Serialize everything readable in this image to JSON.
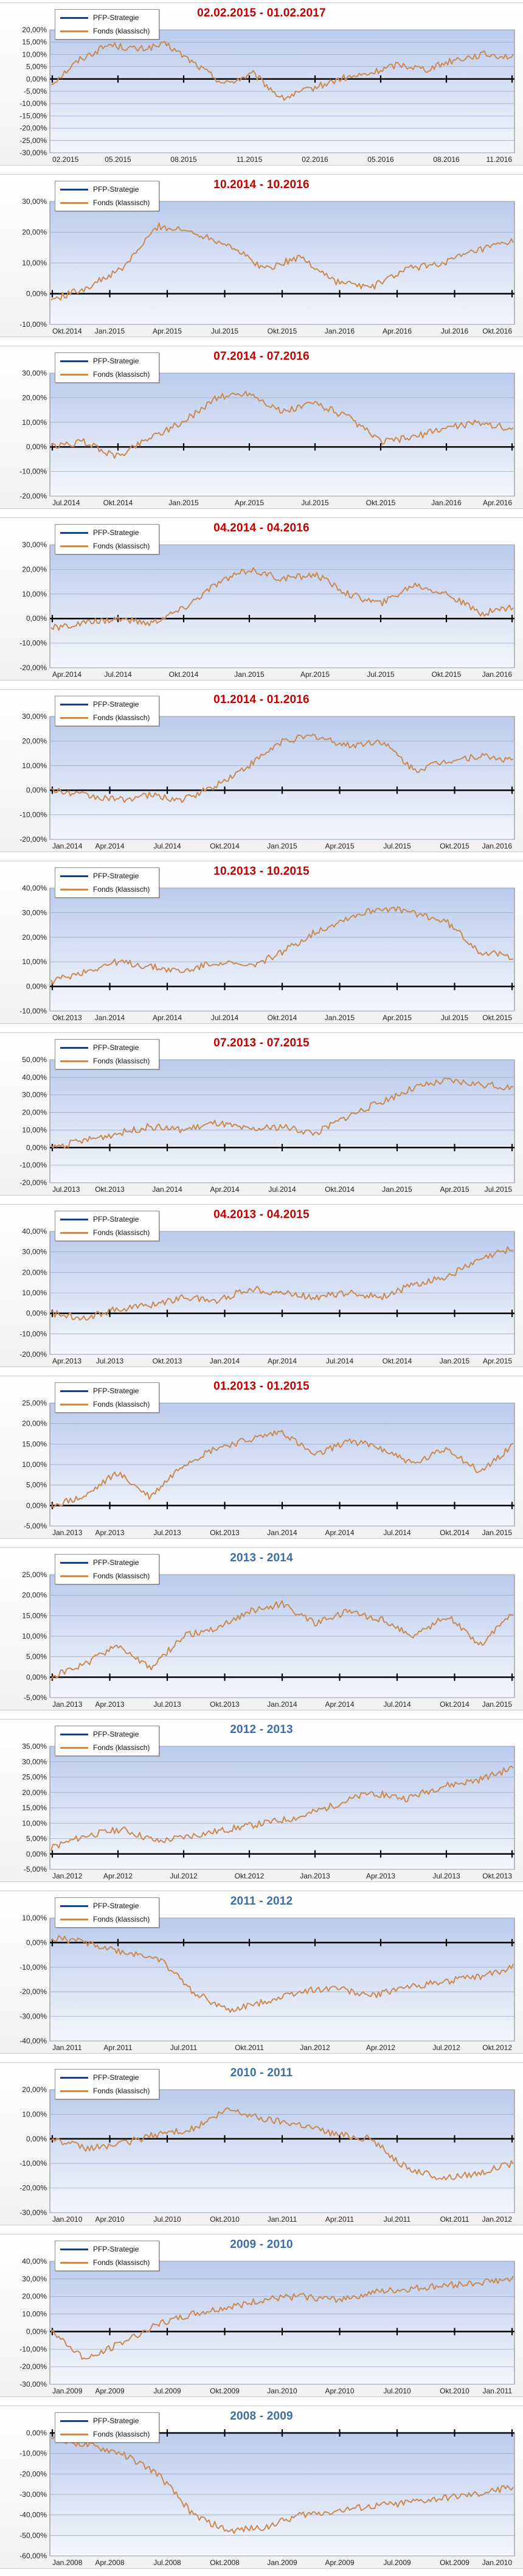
{
  "legend": {
    "strategy": "PFP-Strategie",
    "fund": "Fonds (klassisch)"
  },
  "colors": {
    "fund_line": "#c98a52",
    "strategy_line": "#1b3f7a",
    "plot_bg_top": "#bccced",
    "plot_bg_bottom": "#f4f6fb",
    "red_title": "#c00000",
    "blue_title": "#3b6ea5"
  },
  "chart_data": [
    {
      "type": "line",
      "title": "02.02.2015 - 01.02.2017",
      "title_color": "red",
      "y_ticks": [
        "20,00%",
        "15,00%",
        "10,00%",
        "5,00%",
        "0,00%",
        "-5,00%",
        "-10,00%",
        "-15,00%",
        "-20,00%",
        "-25,00%",
        "-30,00%"
      ],
      "ylim": [
        -30,
        20
      ],
      "x_ticks": [
        "02.2015",
        "05.2015",
        "08.2015",
        "11.2015",
        "02.2016",
        "05.2016",
        "08.2016",
        "11.2016"
      ],
      "series": [
        {
          "name": "PFP-Strategie",
          "values": []
        },
        {
          "name": "Fonds (klassisch)",
          "values": [
            -2,
            8,
            14,
            12,
            14,
            6,
            -2,
            2,
            -8,
            -4,
            0,
            2,
            6,
            4,
            8,
            10,
            9
          ]
        }
      ]
    },
    {
      "type": "line",
      "title": "10.2014 - 10.2016",
      "title_color": "red",
      "y_ticks": [
        "30,00%",
        "20,00%",
        "10,00%",
        "0,00%",
        "-10,00%"
      ],
      "ylim": [
        -10,
        30
      ],
      "x_ticks": [
        "Okt.2014",
        "Jan.2015",
        "Apr.2015",
        "Jul.2015",
        "Okt.2015",
        "Jan.2016",
        "Apr.2016",
        "Jul.2016",
        "Okt.2016"
      ],
      "series": [
        {
          "name": "PFP-Strategie",
          "values": []
        },
        {
          "name": "Fonds (klassisch)",
          "values": [
            -2,
            2,
            8,
            22,
            20,
            16,
            8,
            12,
            4,
            2,
            8,
            10,
            14,
            17
          ]
        }
      ]
    },
    {
      "type": "line",
      "title": "07.2014 - 07.2016",
      "title_color": "red",
      "y_ticks": [
        "30,00%",
        "20,00%",
        "10,00%",
        "0,00%",
        "-10,00%",
        "-20,00%"
      ],
      "ylim": [
        -20,
        30
      ],
      "x_ticks": [
        "Jul.2014",
        "Okt.2014",
        "Jan.2015",
        "Apr.2015",
        "Jul.2015",
        "Okt.2015",
        "Jan.2016",
        "Apr.2016"
      ],
      "series": [
        {
          "name": "PFP-Strategie",
          "values": []
        },
        {
          "name": "Fonds (klassisch)",
          "values": [
            0,
            2,
            -4,
            4,
            10,
            20,
            22,
            14,
            18,
            12,
            2,
            4,
            8,
            10,
            7
          ]
        }
      ]
    },
    {
      "type": "line",
      "title": "04.2014 - 04.2016",
      "title_color": "red",
      "y_ticks": [
        "30,00%",
        "20,00%",
        "10,00%",
        "0,00%",
        "-10,00%",
        "-20,00%"
      ],
      "ylim": [
        -20,
        30
      ],
      "x_ticks": [
        "Apr.2014",
        "Jul.2014",
        "Okt.2014",
        "Jan.2015",
        "Apr.2015",
        "Jul.2015",
        "Okt.2015",
        "Jan.2016"
      ],
      "series": [
        {
          "name": "PFP-Strategie",
          "values": []
        },
        {
          "name": "Fonds (klassisch)",
          "values": [
            -4,
            -2,
            0,
            -2,
            4,
            14,
            20,
            16,
            18,
            10,
            6,
            14,
            10,
            2,
            5
          ]
        }
      ]
    },
    {
      "type": "line",
      "title": "01.2014 - 01.2016",
      "title_color": "red",
      "y_ticks": [
        "30,00%",
        "20,00%",
        "10,00%",
        "0,00%",
        "-10,00%",
        "-20,00%"
      ],
      "ylim": [
        -20,
        30
      ],
      "x_ticks": [
        "Jan.2014",
        "Apr.2014",
        "Jul.2014",
        "Okt.2014",
        "Jan.2015",
        "Apr.2015",
        "Jul.2015",
        "Okt.2015",
        "Jan.2016"
      ],
      "series": [
        {
          "name": "PFP-Strategie",
          "values": []
        },
        {
          "name": "Fonds (klassisch)",
          "values": [
            0,
            -2,
            -4,
            -2,
            -4,
            2,
            10,
            20,
            22,
            18,
            20,
            8,
            12,
            14,
            12
          ]
        }
      ]
    },
    {
      "type": "line",
      "title": "10.2013 - 10.2015",
      "title_color": "red",
      "y_ticks": [
        "40,00%",
        "30,00%",
        "20,00%",
        "10,00%",
        "0,00%",
        "-10,00%"
      ],
      "ylim": [
        -10,
        40
      ],
      "x_ticks": [
        "Okt.2013",
        "Jan.2014",
        "Apr.2014",
        "Jul.2014",
        "Okt.2014",
        "Jan.2015",
        "Apr.2015",
        "Jul.2015",
        "Okt.2015"
      ],
      "series": [
        {
          "name": "PFP-Strategie",
          "values": []
        },
        {
          "name": "Fonds (klassisch)",
          "values": [
            2,
            6,
            10,
            8,
            6,
            10,
            8,
            14,
            22,
            28,
            32,
            30,
            26,
            14,
            12
          ]
        }
      ]
    },
    {
      "type": "line",
      "title": "07.2013 - 07.2015",
      "title_color": "red",
      "y_ticks": [
        "50,00%",
        "40,00%",
        "30,00%",
        "20,00%",
        "10,00%",
        "0,00%",
        "-10,00%",
        "-20,00%"
      ],
      "ylim": [
        -20,
        50
      ],
      "x_ticks": [
        "Jul.2013",
        "Okt.2013",
        "Jan.2014",
        "Apr.2014",
        "Jul.2014",
        "Okt.2014",
        "Jan.2015",
        "Apr.2015",
        "Jul.2015"
      ],
      "series": [
        {
          "name": "PFP-Strategie",
          "values": []
        },
        {
          "name": "Fonds (klassisch)",
          "values": [
            0,
            4,
            8,
            12,
            10,
            14,
            10,
            12,
            8,
            18,
            26,
            34,
            38,
            36,
            34
          ]
        }
      ]
    },
    {
      "type": "line",
      "title": "04.2013 - 04.2015",
      "title_color": "red",
      "y_ticks": [
        "40,00%",
        "30,00%",
        "20,00%",
        "10,00%",
        "0,00%",
        "-10,00%",
        "-20,00%"
      ],
      "ylim": [
        -20,
        40
      ],
      "x_ticks": [
        "Apr.2013",
        "Jul.2013",
        "Okt.2013",
        "Jan.2014",
        "Apr.2014",
        "Jul.2014",
        "Okt.2014",
        "Jan.2015",
        "Apr.2015"
      ],
      "series": [
        {
          "name": "PFP-Strategie",
          "values": []
        },
        {
          "name": "Fonds (klassisch)",
          "values": [
            0,
            -2,
            2,
            4,
            8,
            6,
            12,
            10,
            8,
            10,
            8,
            14,
            18,
            26,
            32
          ]
        }
      ]
    },
    {
      "type": "line",
      "title": "01.2013 - 01.2015",
      "title_color": "red",
      "y_ticks": [
        "25,00%",
        "20,00%",
        "15,00%",
        "10,00%",
        "5,00%",
        "0,00%",
        "-5,00%"
      ],
      "ylim": [
        -5,
        25
      ],
      "x_ticks": [
        "Jan.2013",
        "Apr.2013",
        "Jul.2013",
        "Okt.2013",
        "Jan.2014",
        "Apr.2014",
        "Jul.2014",
        "Okt.2014",
        "Jan.2015"
      ],
      "series": [
        {
          "name": "PFP-Strategie",
          "values": []
        },
        {
          "name": "Fonds (klassisch)",
          "values": [
            0,
            2,
            8,
            2,
            10,
            14,
            16,
            18,
            12,
            16,
            14,
            10,
            14,
            8,
            15
          ]
        }
      ]
    },
    {
      "type": "line",
      "title": "2013 - 2014",
      "title_color": "blue",
      "y_ticks": [
        "25,00%",
        "20,00%",
        "15,00%",
        "10,00%",
        "5,00%",
        "0,00%",
        "-5,00%"
      ],
      "ylim": [
        -5,
        25
      ],
      "x_ticks": [
        "Jan.2013",
        "Apr.2013",
        "Jul.2013",
        "Okt.2013",
        "Jan.2014",
        "Apr.2014",
        "Jul.2014",
        "Okt.2014",
        "Jan.2015"
      ],
      "series": [
        {
          "name": "PFP-Strategie",
          "values": []
        },
        {
          "name": "Fonds (klassisch)",
          "values": [
            0,
            3,
            8,
            2,
            10,
            12,
            16,
            18,
            13,
            16,
            14,
            10,
            15,
            8,
            16
          ]
        }
      ]
    },
    {
      "type": "line",
      "title": "2012 - 2013",
      "title_color": "blue",
      "y_ticks": [
        "35,00%",
        "30,00%",
        "25,00%",
        "20,00%",
        "15,00%",
        "10,00%",
        "5,00%",
        "0,00%",
        "-5,00%"
      ],
      "ylim": [
        -5,
        35
      ],
      "x_ticks": [
        "Jan.2012",
        "Apr.2012",
        "Jul.2012",
        "Okt.2012",
        "Jan.2013",
        "Apr.2013",
        "Jul.2013",
        "Okt.2013"
      ],
      "series": [
        {
          "name": "PFP-Strategie",
          "values": []
        },
        {
          "name": "Fonds (klassisch)",
          "values": [
            2,
            6,
            8,
            4,
            6,
            8,
            10,
            12,
            16,
            20,
            18,
            22,
            24,
            28
          ]
        }
      ]
    },
    {
      "type": "line",
      "title": "2011 - 2012",
      "title_color": "blue",
      "y_ticks": [
        "10,00%",
        "0,00%",
        "-10,00%",
        "-20,00%",
        "-30,00%",
        "-40,00%"
      ],
      "ylim": [
        -40,
        10
      ],
      "x_ticks": [
        "Jan.2011",
        "Apr.2011",
        "Jul.2011",
        "Okt.2011",
        "Jan.2012",
        "Apr.2012",
        "Jul.2012",
        "Okt.2012"
      ],
      "series": [
        {
          "name": "PFP-Strategie",
          "values": []
        },
        {
          "name": "Fonds (klassisch)",
          "values": [
            2,
            0,
            -4,
            -6,
            -20,
            -28,
            -24,
            -20,
            -18,
            -22,
            -18,
            -16,
            -14,
            -10
          ]
        }
      ]
    },
    {
      "type": "line",
      "title": "2010 - 2011",
      "title_color": "blue",
      "y_ticks": [
        "20,00%",
        "10,00%",
        "0,00%",
        "-10,00%",
        "-20,00%",
        "-30,00%"
      ],
      "ylim": [
        -30,
        20
      ],
      "x_ticks": [
        "Jan.2010",
        "Apr.2010",
        "Jul.2010",
        "Okt.2010",
        "Jan.2011",
        "Apr.2011",
        "Jul.2011",
        "Okt.2011",
        "Jan.2012"
      ],
      "series": [
        {
          "name": "PFP-Strategie",
          "values": []
        },
        {
          "name": "Fonds (klassisch)",
          "values": [
            0,
            -4,
            -2,
            2,
            4,
            12,
            8,
            6,
            2,
            0,
            -12,
            -16,
            -14,
            -10
          ]
        }
      ]
    },
    {
      "type": "line",
      "title": "2009 - 2010",
      "title_color": "blue",
      "y_ticks": [
        "40,00%",
        "30,00%",
        "20,00%",
        "10,00%",
        "0,00%",
        "-10,00%",
        "-20,00%",
        "-30,00%"
      ],
      "ylim": [
        -30,
        40
      ],
      "x_ticks": [
        "Jan.2009",
        "Apr.2009",
        "Jul.2009",
        "Okt.2009",
        "Jan.2010",
        "Apr.2010",
        "Jul.2010",
        "Okt.2010",
        "Jan.2011"
      ],
      "series": [
        {
          "name": "PFP-Strategie",
          "values": []
        },
        {
          "name": "Fonds (klassisch)",
          "values": [
            0,
            -16,
            -6,
            4,
            10,
            14,
            18,
            20,
            18,
            22,
            24,
            26,
            28,
            30
          ]
        }
      ]
    },
    {
      "type": "line",
      "title": "2008 - 2009",
      "title_color": "blue",
      "y_ticks": [
        "0,00%",
        "-10,00%",
        "-20,00%",
        "-30,00%",
        "-40,00%",
        "-50,00%",
        "-60,00%"
      ],
      "ylim": [
        -60,
        0
      ],
      "x_ticks": [
        "Jan.2008",
        "Apr.2008",
        "Jul.2008",
        "Okt.2008",
        "Jan.2009",
        "Apr.2009",
        "Jul.2009",
        "Okt.2009",
        "Jan.2010"
      ],
      "series": [
        {
          "name": "PFP-Strategie",
          "values": []
        },
        {
          "name": "Fonds (klassisch)",
          "values": [
            -2,
            -6,
            -10,
            -20,
            -40,
            -48,
            -46,
            -40,
            -38,
            -36,
            -34,
            -32,
            -30,
            -26
          ]
        }
      ]
    }
  ]
}
